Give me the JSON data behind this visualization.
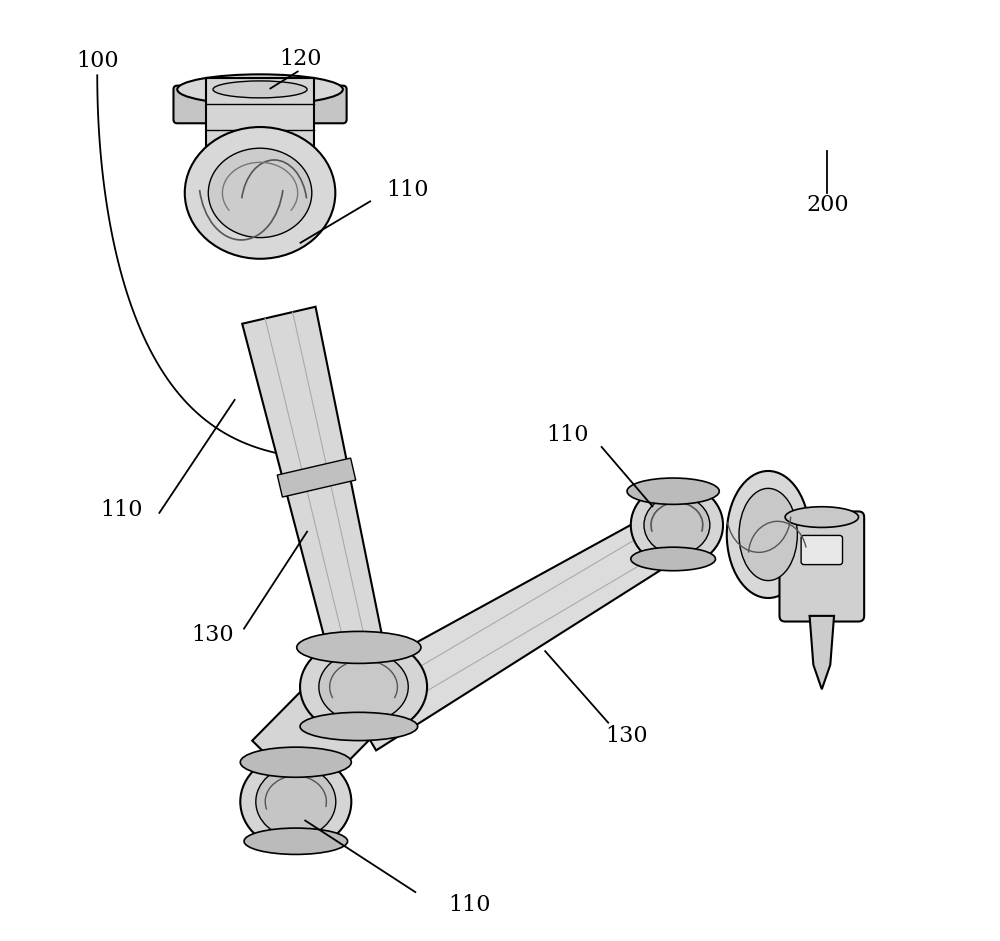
{
  "bg_color": "#ffffff",
  "line_color": "#000000",
  "figsize": [
    10.0,
    9.41
  ],
  "dpi": 100
}
